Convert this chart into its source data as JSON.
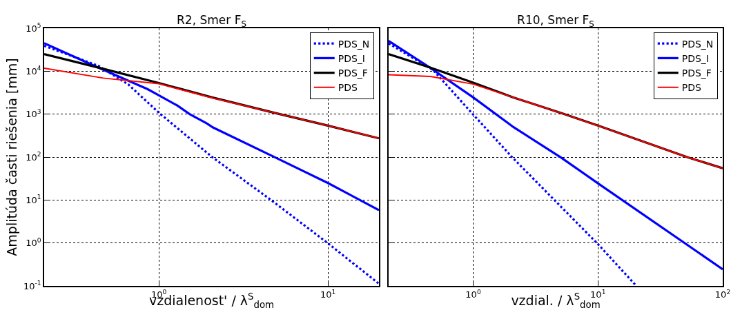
{
  "chart_data": [
    {
      "type": "line",
      "title": "R2, Smer F$_{S}$",
      "xlabel": "vzdialenost' / λ$^{S}$$_{dom}$",
      "ylabel": "Amplitúda časti riešenia [mm]",
      "log": "xy",
      "grid": true,
      "legend": "top right",
      "marker": "none",
      "xlim": [
        0.21,
        20
      ],
      "xticks": [
        {
          "value": 1,
          "label": "10$^{0}$"
        },
        {
          "value": 10,
          "label": "10$^{1}$"
        }
      ],
      "ylim": [
        0.1,
        100000
      ],
      "yticks": [
        {
          "value": 0.1,
          "label": "10$^{-1}$"
        },
        {
          "value": 1,
          "label": "10$^{0}$"
        },
        {
          "value": 10,
          "label": "10$^{1}$"
        },
        {
          "value": 100,
          "label": "10$^{2}$"
        },
        {
          "value": 1000,
          "label": "10$^{3}$"
        },
        {
          "value": 10000,
          "label": "10$^{4}$"
        },
        {
          "value": 100000,
          "label": "10$^{5}$"
        }
      ],
      "series": [
        {
          "name": "PDS_N",
          "color": "#0000ff",
          "line_style": "dotted",
          "x": [
            0.21,
            0.44,
            0.66,
            1,
            2.06,
            4.62,
            10,
            20
          ],
          "values": [
            39000,
            13300,
            4900,
            1080,
            101,
            9.9,
            0.98,
            0.112
          ]
        },
        {
          "name": "PDS_I",
          "color": "#0000ff",
          "line_style": "solid",
          "x": [
            0.21,
            0.44,
            0.86,
            1,
            1.29,
            1.52,
            1.92,
            2.09,
            4.93,
            10,
            20
          ],
          "values": [
            45000,
            12100,
            3800,
            2750,
            1570,
            1000,
            610,
            490,
            96,
            24.8,
            5.8
          ]
        },
        {
          "name": "PDS_F",
          "color": "#000000",
          "line_style": "solid",
          "x": [
            0.21,
            0.44,
            1,
            2.06,
            4.93,
            10,
            20
          ],
          "values": [
            25000,
            12100,
            5300,
            2450,
            1050,
            540,
            273
          ]
        },
        {
          "name": "PDS",
          "color": "#ff0000",
          "line_style": "solid",
          "x": [
            0.21,
            0.47,
            1,
            2.06,
            4.93,
            10,
            20
          ],
          "values": [
            11700,
            6900,
            5100,
            2400,
            1050,
            540,
            273
          ]
        }
      ]
    },
    {
      "type": "line",
      "title": "R10, Smer F$_{S}$",
      "xlabel": "vzdial. / λ$^{S}$$_{dom}$",
      "log": "xy",
      "grid": true,
      "legend": "top right",
      "marker": "none",
      "tick_labels": "x",
      "xlim": [
        0.21,
        100
      ],
      "xticks": [
        {
          "value": 1,
          "label": "10$^{0}$"
        },
        {
          "value": 10,
          "label": "10$^{1}$"
        },
        {
          "value": 100,
          "label": "10$^{2}$"
        }
      ],
      "ylim": [
        0.1,
        100000
      ],
      "yticks": [
        0.1,
        1,
        10,
        100,
        1000,
        10000,
        100000
      ],
      "series": [
        {
          "name": "PDS_N",
          "color": "#0000ff",
          "line_style": "dotted",
          "x": [
            0.21,
            0.476,
            1,
            2.06,
            10,
            20.3
          ],
          "values": [
            44500,
            10700,
            980,
            98,
            0.94,
            0.1
          ]
        },
        {
          "name": "PDS_I",
          "color": "#0000ff",
          "line_style": "solid",
          "x": [
            0.21,
            0.447,
            1,
            1.93,
            2.1,
            5.1,
            10,
            100
          ],
          "values": [
            51000,
            12300,
            2450,
            600,
            500,
            96,
            24.5,
            0.243
          ]
        },
        {
          "name": "PDS_F",
          "color": "#000000",
          "line_style": "solid",
          "x": [
            0.21,
            0.447,
            1,
            2.1,
            5.1,
            10,
            52.7,
            100
          ],
          "values": [
            25000,
            12300,
            5400,
            2450,
            1050,
            540,
            98,
            55
          ]
        },
        {
          "name": "PDS",
          "color": "#ff0000",
          "line_style": "solid",
          "x": [
            0.21,
            0.456,
            1,
            2.1,
            5.1,
            10,
            52.7,
            100
          ],
          "values": [
            8300,
            7500,
            5000,
            2450,
            1050,
            540,
            98,
            55
          ]
        }
      ]
    }
  ]
}
